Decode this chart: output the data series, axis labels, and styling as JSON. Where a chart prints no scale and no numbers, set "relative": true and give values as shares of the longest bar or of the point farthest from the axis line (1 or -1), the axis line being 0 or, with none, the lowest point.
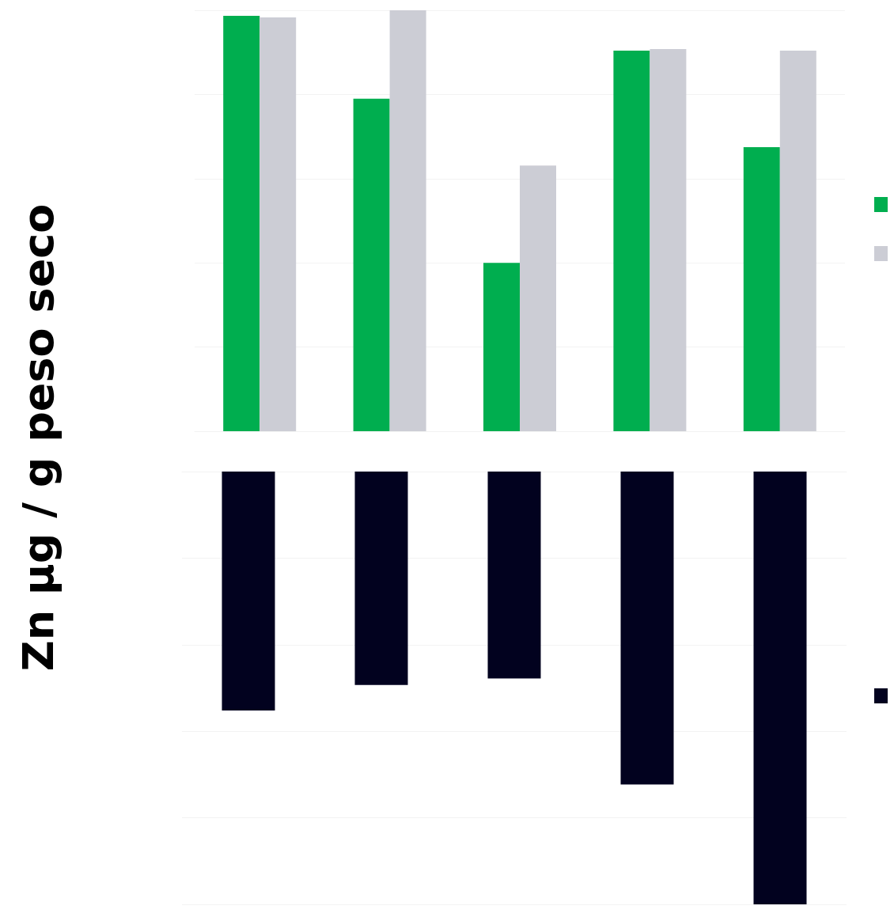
{
  "chart_data": [
    {
      "type": "bar",
      "ylabel": "Zn µg / g peso seco",
      "categories": [
        null,
        null,
        null,
        null,
        null
      ],
      "relative": true,
      "grid": "y",
      "series": [
        {
          "color": "#00ae4f",
          "values": [
            0.987,
            0.79,
            0.4,
            0.904,
            0.675
          ]
        },
        {
          "color": "#cccdd5",
          "values": [
            0.983,
            1,
            0.631,
            0.908,
            0.904
          ]
        }
      ]
    },
    {
      "type": "bar",
      "categories": [
        null,
        null,
        null,
        null,
        null
      ],
      "relative": true,
      "grid": "y",
      "series": [
        {
          "color": "#02021f",
          "values": [
            -0.552,
            -0.493,
            -0.478,
            -0.723,
            -1
          ]
        }
      ]
    }
  ]
}
